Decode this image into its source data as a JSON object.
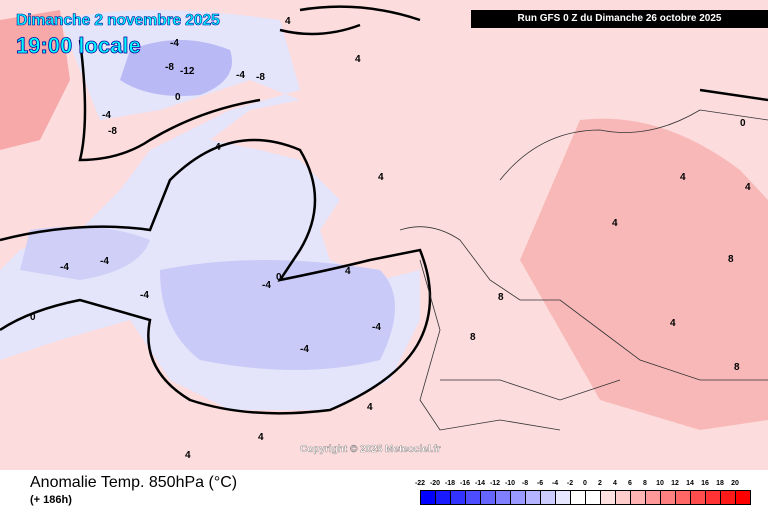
{
  "header": {
    "date": "Dimanche 2 novembre 2025",
    "time": "19:00 locale",
    "run": "Run GFS 0 Z du Dimanche 26 octobre 2025"
  },
  "copyright": "Copyright © 2025 Meteociel.fr",
  "legend": {
    "title": "Anomalie Temp. 850hPa (°C)",
    "lead": "(+ 186h)",
    "ticks": [
      "-22",
      "-20",
      "-18",
      "-16",
      "-14",
      "-12",
      "-10",
      "-8",
      "-6",
      "-4",
      "-2",
      "0",
      "2",
      "4",
      "6",
      "8",
      "10",
      "12",
      "14",
      "16",
      "18",
      "20"
    ],
    "colors": [
      "#0000ff",
      "#1a1aff",
      "#3333ff",
      "#4d4dff",
      "#6666ff",
      "#8080ff",
      "#9999ff",
      "#b3b3ff",
      "#ccccff",
      "#e6e6ff",
      "#ffffff",
      "#ffffff",
      "#ffe0e0",
      "#ffcccc",
      "#ffb3b3",
      "#ff9999",
      "#ff8080",
      "#ff6666",
      "#ff4d4d",
      "#ff3333",
      "#ff1a1a",
      "#ff0000"
    ]
  },
  "contour_labels": [
    "-4",
    "-8",
    "-12",
    "-8",
    "-4",
    "0",
    "4",
    "-4",
    "-8",
    "4",
    "4",
    "0",
    "-4",
    "-4",
    "-4",
    "0",
    "-4",
    "-4",
    "-4",
    "4",
    "4",
    "4",
    "8",
    "8",
    "8",
    "4",
    "4",
    "4",
    "0",
    "4",
    "4",
    "8",
    "4"
  ]
}
